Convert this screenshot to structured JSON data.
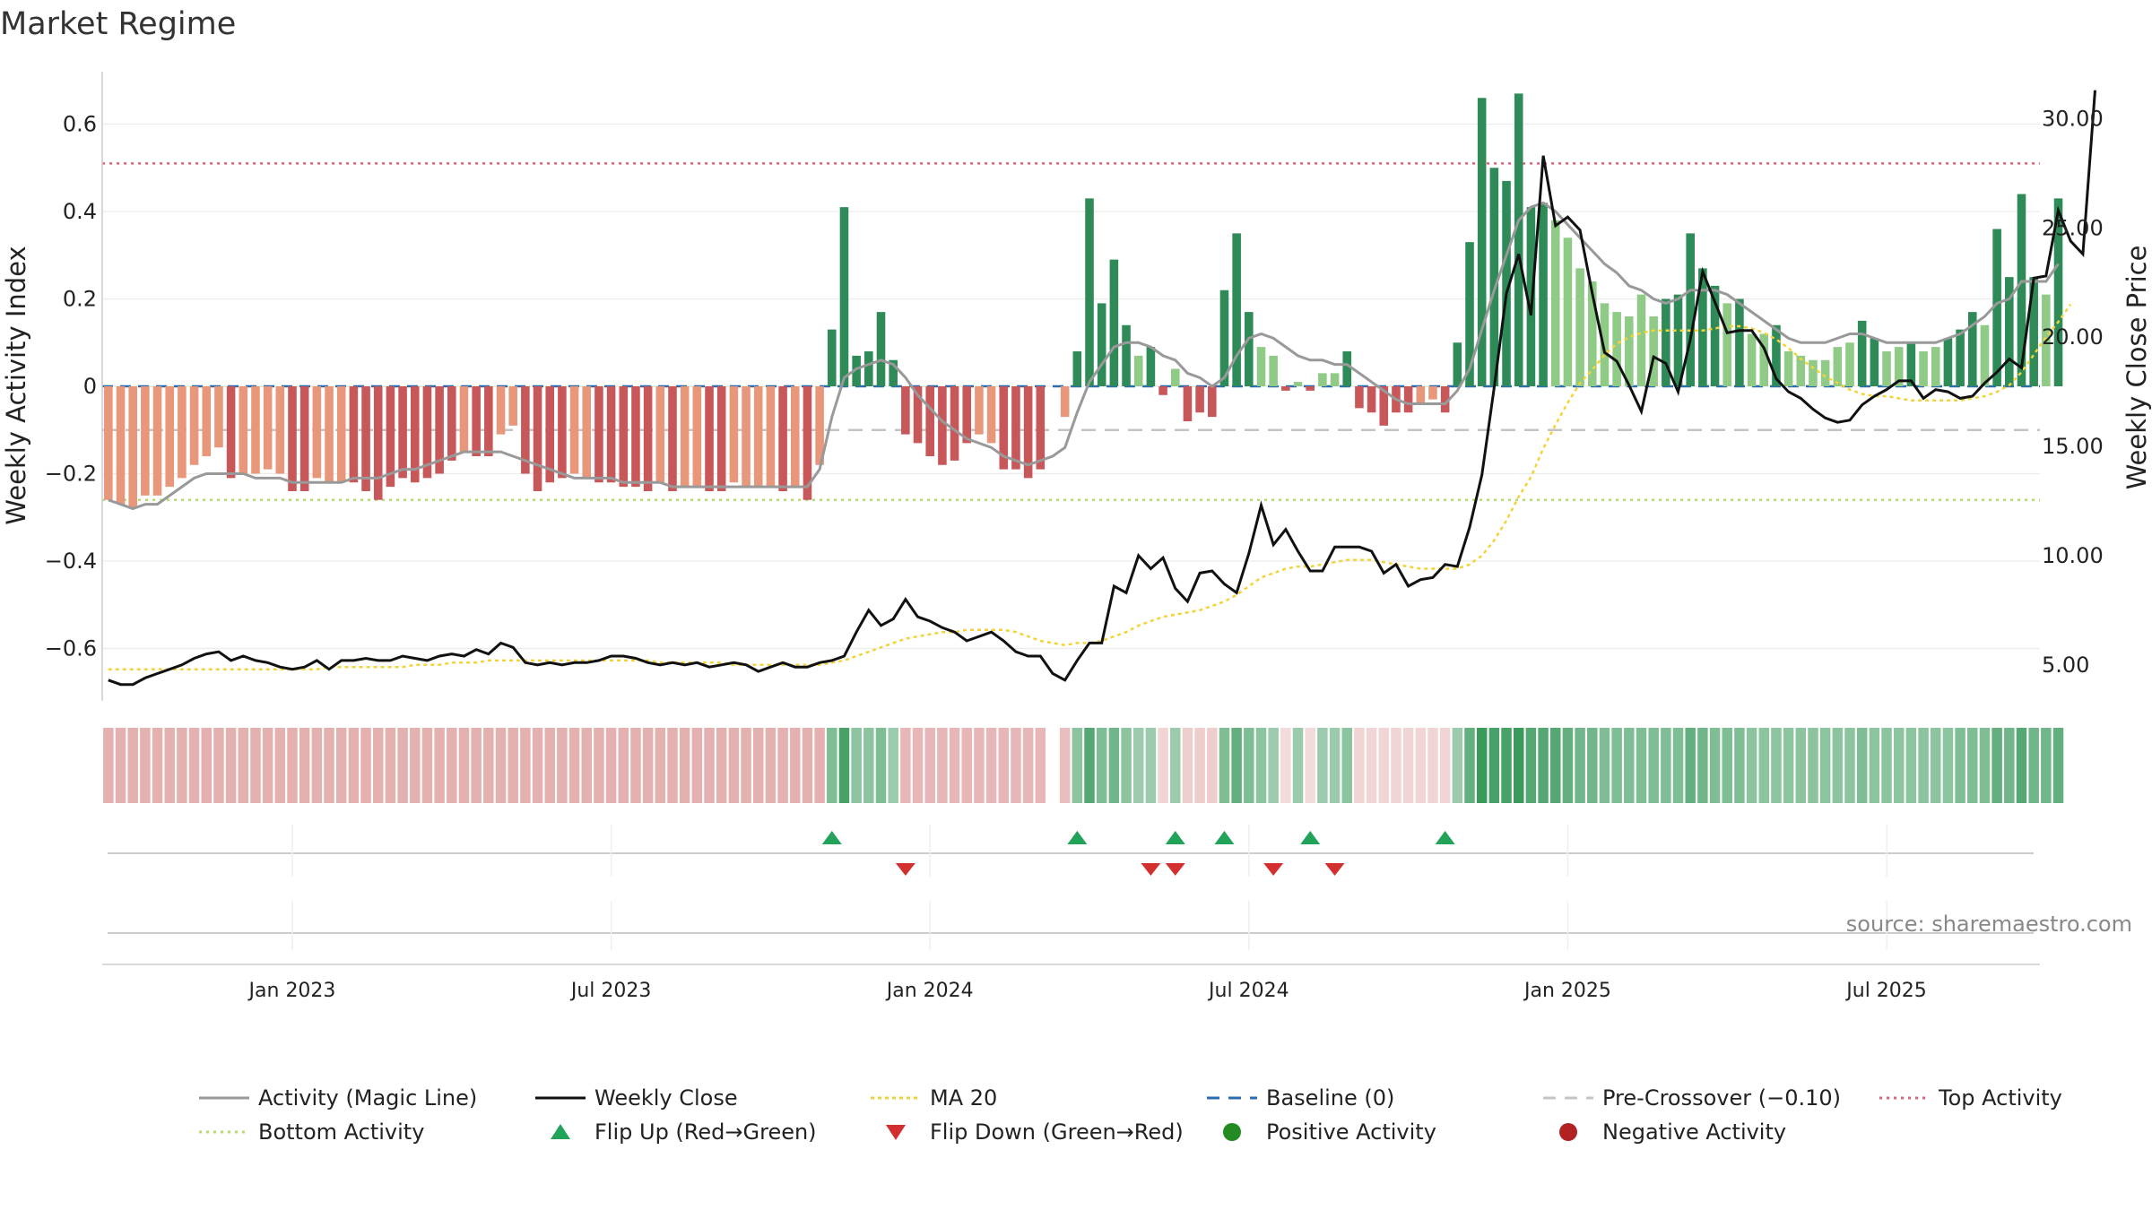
{
  "title": "Market Regime",
  "source": "source: sharemaestro.com",
  "y_left_label": "Weekly Activity Index",
  "y_right_label": "Weekly Close Price",
  "left_ticks": [
    {
      "v": 0.6,
      "label": "0.6"
    },
    {
      "v": 0.4,
      "label": "0.4"
    },
    {
      "v": 0.2,
      "label": "0.2"
    },
    {
      "v": 0,
      "label": "0"
    },
    {
      "v": -0.2,
      "label": "−0.2"
    },
    {
      "v": -0.4,
      "label": "−0.4"
    },
    {
      "v": -0.6,
      "label": "−0.6"
    }
  ],
  "right_ticks": [
    {
      "v": 30,
      "label": "30.00"
    },
    {
      "v": 25,
      "label": "25.00"
    },
    {
      "v": 20,
      "label": "20.00"
    },
    {
      "v": 15,
      "label": "15.00"
    },
    {
      "v": 10,
      "label": "10.00"
    },
    {
      "v": 5,
      "label": "5.00"
    }
  ],
  "x_ticks": [
    {
      "i": 15,
      "label": "Jan 2023"
    },
    {
      "i": 41,
      "label": "Jul 2023"
    },
    {
      "i": 67,
      "label": "Jan 2024"
    },
    {
      "i": 93,
      "label": "Jul 2024"
    },
    {
      "i": 119,
      "label": "Jan 2025"
    },
    {
      "i": 145,
      "label": "Jul 2025"
    }
  ],
  "legend": [
    {
      "key": "magic",
      "label": "Activity (Magic Line)"
    },
    {
      "key": "close",
      "label": "Weekly Close"
    },
    {
      "key": "ma",
      "label": "MA 20"
    },
    {
      "key": "base",
      "label": "Baseline (0)"
    },
    {
      "key": "pre",
      "label": "Pre-Crossover (−0.10)"
    },
    {
      "key": "top",
      "label": "Top Activity"
    },
    {
      "key": "bottom",
      "label": "Bottom Activity"
    },
    {
      "key": "flipup",
      "label": "Flip Up (Red→Green)"
    },
    {
      "key": "flipdown",
      "label": "Flip Down (Green→Red)"
    },
    {
      "key": "pos",
      "label": "Positive Activity"
    },
    {
      "key": "neg",
      "label": "Negative Activity"
    }
  ],
  "colors": {
    "pos_dark": "#2e8b57",
    "pos_light": "#8fca87",
    "neg_dark": "#c8575a",
    "neg_light": "#e8977b",
    "magic": "#999999",
    "close": "#111111",
    "ma": "#f2d43a",
    "baseline": "#2b6cb0",
    "pre": "#c4c4c4",
    "top": "#e0607e",
    "bottom": "#b5dc70",
    "flip_up": "#22a35a",
    "flip_down": "#d32f2f",
    "pos_dot": "#228b22",
    "neg_dot": "#b22222"
  },
  "chart_data": {
    "type": "bar",
    "weeks": 158,
    "x_start": "2022-10-17",
    "x_step": "1 week",
    "y_left_range": [
      -0.72,
      0.72
    ],
    "y_right_range": [
      3.35,
      32.15
    ],
    "levels": {
      "top": 0.51,
      "bottom": -0.26,
      "pre_crossover": -0.1,
      "baseline": 0
    },
    "series": [
      {
        "name": "Weekly Activity Index",
        "values": [
          -0.26,
          -0.27,
          -0.28,
          -0.25,
          -0.25,
          -0.23,
          -0.21,
          -0.18,
          -0.16,
          -0.14,
          -0.21,
          -0.2,
          -0.2,
          -0.19,
          -0.2,
          -0.24,
          -0.24,
          -0.21,
          -0.22,
          -0.22,
          -0.22,
          -0.24,
          -0.26,
          -0.23,
          -0.21,
          -0.22,
          -0.21,
          -0.2,
          -0.17,
          -0.15,
          -0.16,
          -0.16,
          -0.11,
          -0.09,
          -0.2,
          -0.24,
          -0.22,
          -0.21,
          -0.2,
          -0.21,
          -0.22,
          -0.22,
          -0.23,
          -0.23,
          -0.24,
          -0.22,
          -0.24,
          -0.23,
          -0.23,
          -0.24,
          -0.24,
          -0.22,
          -0.23,
          -0.23,
          -0.23,
          -0.24,
          -0.23,
          -0.26,
          -0.18,
          0.13,
          0.41,
          0.07,
          0.08,
          0.17,
          0.06,
          -0.11,
          -0.13,
          -0.16,
          -0.18,
          -0.17,
          -0.13,
          -0.11,
          -0.13,
          -0.19,
          -0.19,
          -0.21,
          -0.19,
          0.0,
          -0.07,
          0.08,
          0.43,
          0.19,
          0.29,
          0.14,
          0.07,
          0.09,
          -0.02,
          0.04,
          -0.08,
          -0.06,
          -0.07,
          0.22,
          0.35,
          0.17,
          0.09,
          0.07,
          -0.01,
          0.01,
          -0.01,
          0.03,
          0.03,
          0.08,
          -0.05,
          -0.06,
          -0.09,
          -0.06,
          -0.06,
          -0.04,
          -0.03,
          -0.06,
          0.1,
          0.33,
          0.66,
          0.5,
          0.47,
          0.67,
          0.41,
          0.42,
          0.38,
          0.34,
          0.27,
          0.24,
          0.19,
          0.17,
          0.16,
          0.21,
          0.16,
          0.2,
          0.21,
          0.35,
          0.27,
          0.23,
          0.19,
          0.2,
          0.12,
          0.12,
          0.14,
          0.08,
          0.07,
          0.06,
          0.06,
          0.09,
          0.1,
          0.15,
          0.11,
          0.08,
          0.09,
          0.1,
          0.08,
          0.09,
          0.11,
          0.13,
          0.17,
          0.14,
          0.36,
          0.25,
          0.44,
          0.25,
          0.21,
          0.43
        ]
      },
      {
        "name": "Activity (Magic Line)",
        "values": [
          -0.26,
          -0.27,
          -0.28,
          -0.27,
          -0.27,
          -0.25,
          -0.23,
          -0.21,
          -0.2,
          -0.2,
          -0.2,
          -0.2,
          -0.21,
          -0.21,
          -0.21,
          -0.22,
          -0.22,
          -0.22,
          -0.22,
          -0.22,
          -0.21,
          -0.21,
          -0.21,
          -0.2,
          -0.19,
          -0.19,
          -0.18,
          -0.17,
          -0.16,
          -0.15,
          -0.15,
          -0.15,
          -0.15,
          -0.16,
          -0.17,
          -0.18,
          -0.19,
          -0.2,
          -0.21,
          -0.21,
          -0.21,
          -0.21,
          -0.22,
          -0.22,
          -0.22,
          -0.22,
          -0.23,
          -0.23,
          -0.23,
          -0.23,
          -0.23,
          -0.23,
          -0.23,
          -0.23,
          -0.23,
          -0.23,
          -0.23,
          -0.23,
          -0.19,
          -0.07,
          0.02,
          0.04,
          0.05,
          0.06,
          0.05,
          0.02,
          -0.02,
          -0.05,
          -0.08,
          -0.1,
          -0.12,
          -0.13,
          -0.14,
          -0.16,
          -0.17,
          -0.18,
          -0.17,
          -0.16,
          -0.14,
          -0.06,
          0.01,
          0.05,
          0.09,
          0.1,
          0.1,
          0.09,
          0.07,
          0.06,
          0.03,
          0.02,
          0.0,
          0.02,
          0.07,
          0.11,
          0.12,
          0.11,
          0.09,
          0.07,
          0.06,
          0.06,
          0.05,
          0.05,
          0.03,
          0.01,
          -0.01,
          -0.03,
          -0.04,
          -0.04,
          -0.04,
          -0.04,
          -0.01,
          0.04,
          0.13,
          0.22,
          0.3,
          0.38,
          0.41,
          0.42,
          0.4,
          0.37,
          0.34,
          0.31,
          0.28,
          0.26,
          0.23,
          0.22,
          0.2,
          0.19,
          0.2,
          0.22,
          0.22,
          0.22,
          0.21,
          0.19,
          0.17,
          0.15,
          0.13,
          0.11,
          0.1,
          0.1,
          0.1,
          0.11,
          0.12,
          0.12,
          0.11,
          0.1,
          0.1,
          0.1,
          0.1,
          0.1,
          0.11,
          0.12,
          0.14,
          0.16,
          0.19,
          0.2,
          0.24,
          0.24,
          0.24,
          0.28
        ]
      },
      {
        "name": "Weekly Close",
        "values": [
          4.3,
          4.1,
          4.1,
          4.4,
          4.6,
          4.8,
          5.0,
          5.3,
          5.5,
          5.6,
          5.2,
          5.4,
          5.2,
          5.1,
          4.9,
          4.8,
          4.9,
          5.2,
          4.8,
          5.2,
          5.2,
          5.3,
          5.2,
          5.2,
          5.4,
          5.3,
          5.2,
          5.4,
          5.5,
          5.4,
          5.7,
          5.5,
          6.0,
          5.8,
          5.1,
          5.0,
          5.1,
          5.0,
          5.1,
          5.1,
          5.2,
          5.4,
          5.4,
          5.3,
          5.1,
          5.0,
          5.1,
          5.0,
          5.1,
          4.9,
          5.0,
          5.1,
          5.0,
          4.7,
          4.9,
          5.1,
          4.9,
          4.9,
          5.1,
          5.2,
          5.4,
          6.5,
          7.5,
          6.8,
          7.1,
          8.0,
          7.2,
          7.0,
          6.7,
          6.5,
          6.1,
          6.3,
          6.5,
          6.1,
          5.6,
          5.4,
          5.4,
          4.6,
          4.3,
          5.2,
          6.0,
          6.0,
          8.6,
          8.3,
          10.0,
          9.4,
          9.9,
          8.5,
          7.9,
          9.2,
          9.3,
          8.7,
          8.3,
          10.1,
          12.3,
          10.5,
          11.2,
          10.2,
          9.3,
          9.3,
          10.4,
          10.4,
          10.4,
          10.2,
          9.2,
          9.6,
          8.6,
          8.9,
          9.0,
          9.6,
          9.5,
          11.3,
          13.7,
          17.7,
          22.0,
          23.8,
          21.0,
          28.3,
          25.1,
          25.5,
          24.9,
          22.0,
          19.3,
          18.9,
          17.8,
          16.6,
          19.1,
          18.8,
          17.5,
          19.9,
          23.0,
          21.6,
          20.2,
          20.3,
          20.3,
          19.5,
          18.1,
          17.5,
          17.2,
          16.7,
          16.3,
          16.1,
          16.2,
          16.9,
          17.3,
          17.6,
          18.0,
          18.0,
          17.2,
          17.6,
          17.5,
          17.2,
          17.3,
          17.9,
          18.4,
          19.0,
          18.6,
          22.7,
          22.8,
          25.8,
          24.4,
          23.8,
          31.3
        ]
      },
      {
        "name": "MA 20",
        "values": [
          4.8,
          4.8,
          4.8,
          4.8,
          4.8,
          4.8,
          4.8,
          4.8,
          4.8,
          4.8,
          4.8,
          4.8,
          4.8,
          4.8,
          4.8,
          4.8,
          4.8,
          4.8,
          4.9,
          4.9,
          4.9,
          4.9,
          4.9,
          4.9,
          4.9,
          5.0,
          5.0,
          5.0,
          5.1,
          5.1,
          5.1,
          5.2,
          5.2,
          5.2,
          5.2,
          5.2,
          5.2,
          5.2,
          5.2,
          5.2,
          5.2,
          5.2,
          5.2,
          5.2,
          5.2,
          5.1,
          5.1,
          5.1,
          5.1,
          5.1,
          5.1,
          5.0,
          5.0,
          5.0,
          5.0,
          5.0,
          5.0,
          5.0,
          5.0,
          5.1,
          5.2,
          5.4,
          5.6,
          5.8,
          6.0,
          6.2,
          6.3,
          6.4,
          6.5,
          6.5,
          6.6,
          6.6,
          6.6,
          6.6,
          6.5,
          6.3,
          6.1,
          6.0,
          5.9,
          6.0,
          6.0,
          6.1,
          6.3,
          6.5,
          6.8,
          7.0,
          7.2,
          7.3,
          7.4,
          7.5,
          7.7,
          7.9,
          8.2,
          8.6,
          9.0,
          9.2,
          9.4,
          9.5,
          9.5,
          9.6,
          9.7,
          9.8,
          9.8,
          9.8,
          9.7,
          9.6,
          9.5,
          9.4,
          9.4,
          9.4,
          9.4,
          9.6,
          10.0,
          10.7,
          11.6,
          12.7,
          13.6,
          14.9,
          16.0,
          17.0,
          17.9,
          18.5,
          19.2,
          19.7,
          20.0,
          20.2,
          20.3,
          20.3,
          20.3,
          20.3,
          20.3,
          20.4,
          20.5,
          20.5,
          20.4,
          20.2,
          19.9,
          19.5,
          19.0,
          18.6,
          18.2,
          17.9,
          17.6,
          17.4,
          17.3,
          17.3,
          17.2,
          17.1,
          17.1,
          17.1,
          17.1,
          17.1,
          17.2,
          17.3,
          17.5,
          17.8,
          18.4,
          19.2,
          20.0,
          20.7,
          21.5
        ]
      }
    ],
    "strength_strip": [
      -1,
      -1,
      -1,
      -1,
      -1,
      -1,
      -1,
      -1,
      -1,
      -1,
      -1,
      -1,
      -1,
      -1,
      -1,
      -1,
      -1,
      -1,
      -1,
      -1,
      -1,
      -1,
      -1,
      -1,
      -1,
      -1,
      -1,
      -1,
      -1,
      -1,
      -1,
      -1,
      -1,
      -1,
      -1,
      -1,
      -1,
      -1,
      -1,
      -1,
      -1,
      -1,
      -1,
      -1,
      -1,
      -1,
      -1,
      -1,
      -1,
      -1,
      -1,
      -1,
      -1,
      -1,
      -1,
      -1,
      -1,
      -1,
      -1,
      0.5,
      0.9,
      0.4,
      0.4,
      0.5,
      0.3,
      -0.9,
      -0.9,
      -0.9,
      -0.9,
      -0.9,
      -0.9,
      -0.9,
      -0.9,
      -0.9,
      -0.9,
      -0.9,
      -0.9,
      0,
      -0.8,
      0.4,
      0.8,
      0.5,
      0.6,
      0.4,
      0.3,
      0.3,
      -0.5,
      0.3,
      -0.6,
      -0.6,
      -0.6,
      0.5,
      0.7,
      0.5,
      0.4,
      0.3,
      -0.4,
      0.3,
      -0.4,
      0.3,
      0.3,
      0.4,
      -0.5,
      -0.5,
      -0.5,
      -0.5,
      -0.5,
      -0.5,
      -0.5,
      -0.5,
      0.3,
      0.7,
      1,
      0.9,
      0.9,
      1,
      0.8,
      0.8,
      0.8,
      0.7,
      0.6,
      0.6,
      0.5,
      0.5,
      0.5,
      0.5,
      0.5,
      0.5,
      0.5,
      0.7,
      0.6,
      0.5,
      0.5,
      0.5,
      0.4,
      0.4,
      0.4,
      0.4,
      0.4,
      0.4,
      0.4,
      0.4,
      0.4,
      0.5,
      0.4,
      0.4,
      0.4,
      0.4,
      0.4,
      0.4,
      0.4,
      0.5,
      0.5,
      0.5,
      0.7,
      0.6,
      0.8,
      0.6,
      0.6,
      0.7
    ],
    "flip_up_weeks": [
      59,
      79,
      87,
      91,
      98,
      109
    ],
    "flip_down_weeks": [
      65,
      85,
      87,
      95,
      100
    ]
  }
}
